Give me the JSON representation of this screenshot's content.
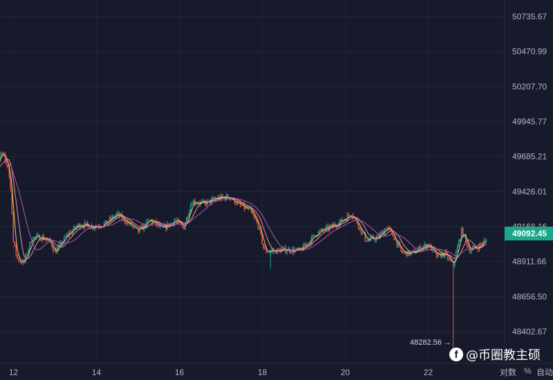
{
  "chart_data": {
    "type": "candlestick",
    "price_axis_ticks": [
      "50735.67",
      "50470.99",
      "50207.70",
      "49945.77",
      "49685.21",
      "49426.01",
      "49168.16",
      "48911.66",
      "48656.50",
      "48402.67"
    ],
    "time_axis_ticks": [
      "12",
      "14",
      "16",
      "18",
      "20",
      "22"
    ],
    "last_price": "49092.45",
    "low_label": "48282.56 →",
    "ylim": [
      48282.56,
      50735.67
    ],
    "price_path": [
      [
        11.5,
        49560
      ],
      [
        11.58,
        49620
      ],
      [
        11.7,
        49720
      ],
      [
        11.78,
        49690
      ],
      [
        11.88,
        49610
      ],
      [
        11.95,
        49400
      ],
      [
        12.0,
        49050
      ],
      [
        12.1,
        48940
      ],
      [
        12.25,
        48910
      ],
      [
        12.45,
        49100
      ],
      [
        12.7,
        49100
      ],
      [
        12.9,
        49060
      ],
      [
        13.0,
        48990
      ],
      [
        13.3,
        49120
      ],
      [
        13.6,
        49200
      ],
      [
        13.9,
        49180
      ],
      [
        14.2,
        49200
      ],
      [
        14.5,
        49270
      ],
      [
        14.8,
        49200
      ],
      [
        15.0,
        49140
      ],
      [
        15.3,
        49230
      ],
      [
        15.6,
        49160
      ],
      [
        15.9,
        49230
      ],
      [
        16.1,
        49170
      ],
      [
        16.3,
        49370
      ],
      [
        16.6,
        49350
      ],
      [
        16.9,
        49390
      ],
      [
        17.2,
        49400
      ],
      [
        17.5,
        49330
      ],
      [
        17.7,
        49300
      ],
      [
        17.9,
        49190
      ],
      [
        18.05,
        49000
      ],
      [
        18.3,
        49000
      ],
      [
        18.6,
        49010
      ],
      [
        18.9,
        49000
      ],
      [
        19.1,
        49060
      ],
      [
        19.3,
        49130
      ],
      [
        19.6,
        49170
      ],
      [
        19.9,
        49220
      ],
      [
        20.15,
        49280
      ],
      [
        20.3,
        49200
      ],
      [
        20.5,
        49080
      ],
      [
        20.8,
        49100
      ],
      [
        21.0,
        49180
      ],
      [
        21.2,
        49090
      ],
      [
        21.35,
        48990
      ],
      [
        21.6,
        48980
      ],
      [
        21.8,
        49020
      ],
      [
        22.0,
        49050
      ],
      [
        22.2,
        48960
      ],
      [
        22.4,
        48980
      ],
      [
        22.6,
        48890
      ],
      [
        22.8,
        49150
      ],
      [
        23.0,
        49010
      ],
      [
        23.2,
        49030
      ],
      [
        23.4,
        49080
      ]
    ]
  },
  "controls": {
    "log_label": "对数",
    "percent_label": "%",
    "auto_label": "自动"
  },
  "watermark": {
    "text": "@币圈教主硕"
  },
  "colors": {
    "background": "#161a2b",
    "up": "#26a69a",
    "down": "#ef5350",
    "ma_fast": "#e8d85a",
    "ma_mid": "#f48fb1",
    "ma_slow": "#b05db0",
    "accent": "#1fa68a"
  }
}
